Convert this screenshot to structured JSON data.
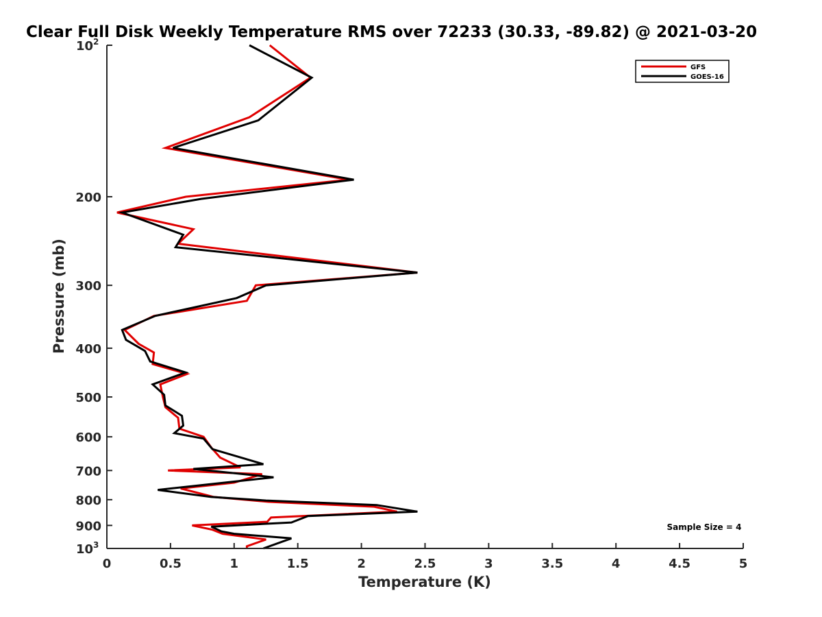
{
  "chart_data": {
    "type": "line",
    "title": "Clear Full Disk Weekly Temperature RMS over 72233 (30.33, -89.82) @ 2021-03-20",
    "xlabel": "Temperature (K)",
    "ylabel": "Pressure (mb)",
    "xlim": [
      0,
      5
    ],
    "ylim": [
      100,
      1000
    ],
    "y_scale": "log",
    "y_reversed": true,
    "grid": false,
    "legend_position": "top-right",
    "x_ticks": [
      0,
      0.5,
      1,
      1.5,
      2,
      2.5,
      3,
      3.5,
      4,
      4.5,
      5
    ],
    "x_tick_labels": [
      "0",
      "0.5",
      "1",
      "1.5",
      "2",
      "2.5",
      "3",
      "3.5",
      "4",
      "4.5",
      "5"
    ],
    "y_ticks": [
      100,
      200,
      300,
      400,
      500,
      600,
      700,
      800,
      900,
      1000
    ],
    "y_tick_labels": [
      {
        "base": "10",
        "exp": "2"
      },
      {
        "base": "200",
        "exp": ""
      },
      {
        "base": "300",
        "exp": ""
      },
      {
        "base": "400",
        "exp": ""
      },
      {
        "base": "500",
        "exp": ""
      },
      {
        "base": "600",
        "exp": ""
      },
      {
        "base": "700",
        "exp": ""
      },
      {
        "base": "800",
        "exp": ""
      },
      {
        "base": "900",
        "exp": ""
      },
      {
        "base": "10",
        "exp": "3"
      }
    ],
    "series": [
      {
        "name": "GFS",
        "color": "#e00000",
        "points": [
          [
            1.28,
            100
          ],
          [
            1.6,
            116
          ],
          [
            1.12,
            139
          ],
          [
            0.46,
            160
          ],
          [
            1.9,
            185
          ],
          [
            0.62,
            200
          ],
          [
            0.08,
            215
          ],
          [
            0.68,
            232
          ],
          [
            0.56,
            248
          ],
          [
            2.44,
            283
          ],
          [
            1.17,
            300
          ],
          [
            1.1,
            322
          ],
          [
            0.37,
            345
          ],
          [
            0.14,
            368
          ],
          [
            0.25,
            392
          ],
          [
            0.37,
            408
          ],
          [
            0.36,
            430
          ],
          [
            0.63,
            450
          ],
          [
            0.42,
            472
          ],
          [
            0.44,
            500
          ],
          [
            0.46,
            524
          ],
          [
            0.56,
            550
          ],
          [
            0.57,
            578
          ],
          [
            0.76,
            600
          ],
          [
            0.82,
            630
          ],
          [
            0.89,
            660
          ],
          [
            1.05,
            690
          ],
          [
            0.48,
            700
          ],
          [
            1.22,
            712
          ],
          [
            1.0,
            740
          ],
          [
            0.58,
            760
          ],
          [
            0.84,
            790
          ],
          [
            1.27,
            808
          ],
          [
            2.1,
            826
          ],
          [
            2.28,
            845
          ],
          [
            1.29,
            868
          ],
          [
            1.26,
            885
          ],
          [
            0.67,
            900
          ],
          [
            0.83,
            918
          ],
          [
            0.91,
            935
          ],
          [
            1.25,
            960
          ],
          [
            1.1,
            990
          ],
          [
            1.1,
            1000
          ]
        ]
      },
      {
        "name": "GOES-16",
        "color": "#000000",
        "points": [
          [
            1.12,
            100
          ],
          [
            1.61,
            116
          ],
          [
            1.19,
            141
          ],
          [
            0.52,
            160
          ],
          [
            1.94,
            185
          ],
          [
            0.74,
            202
          ],
          [
            0.12,
            215
          ],
          [
            0.6,
            238
          ],
          [
            0.54,
            252
          ],
          [
            2.44,
            283
          ],
          [
            1.25,
            300
          ],
          [
            1.02,
            318
          ],
          [
            0.38,
            345
          ],
          [
            0.12,
            368
          ],
          [
            0.15,
            385
          ],
          [
            0.3,
            405
          ],
          [
            0.34,
            425
          ],
          [
            0.62,
            447
          ],
          [
            0.36,
            472
          ],
          [
            0.45,
            495
          ],
          [
            0.46,
            520
          ],
          [
            0.59,
            545
          ],
          [
            0.6,
            570
          ],
          [
            0.53,
            590
          ],
          [
            0.76,
            605
          ],
          [
            0.83,
            635
          ],
          [
            1.23,
            680
          ],
          [
            0.68,
            695
          ],
          [
            1.31,
            722
          ],
          [
            0.4,
            765
          ],
          [
            0.82,
            790
          ],
          [
            1.25,
            803
          ],
          [
            2.12,
            820
          ],
          [
            2.44,
            845
          ],
          [
            1.58,
            862
          ],
          [
            1.45,
            888
          ],
          [
            0.82,
            905
          ],
          [
            0.9,
            925
          ],
          [
            1.0,
            935
          ],
          [
            1.45,
            955
          ],
          [
            1.23,
            1000
          ]
        ]
      }
    ],
    "annotations": [
      {
        "text": "Sample Size = 4",
        "x": 4.4,
        "p": 905
      }
    ]
  }
}
